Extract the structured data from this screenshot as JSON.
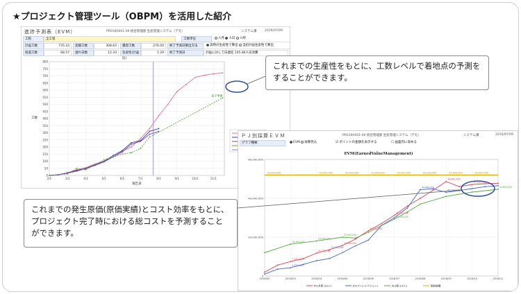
{
  "slide": {
    "title": "★プロジェクト管理ツール（OBPM）を活用した紹介"
  },
  "shot1": {
    "screen_title": "進捗予測表（EVM）",
    "menu": "PR016A001-00 統合管理部 生産管理システム（デモ）",
    "user": "システム課",
    "date": "2016/07/09",
    "row1": {
      "l1": "工程",
      "v1": "全工程",
      "l2": "工数単位",
      "radios": [
        "人月",
        "人日",
        "人時"
      ],
      "selected": 1
    },
    "row2": {
      "l1": "計画工数",
      "v1": "735.33",
      "l2": "実績工数",
      "v2": "308.63",
      "l3": "獲得工数",
      "v3": "276.00",
      "l4": "終了予測日算出方法",
      "radios": [
        "実際の生産性で算出",
        "当初計画生産性で算出"
      ],
      "selected": 0
    },
    "row3": {
      "l1": "経過工数",
      "v1": "68.57",
      "l2": "遅れ日数",
      "v2": "12.33",
      "l3": "生産性(計画比)",
      "v3": "1.29",
      "l4": "終了予測日",
      "v4": "計画に対して日遅延 105.86人日消費"
    },
    "legend": [
      "計画工数(PV)",
      "獲得工数(EV)",
      "実績工数(AC)",
      "予測値",
      "現在日"
    ],
    "ylabel": "工数",
    "xlabel": "報告日",
    "annotation": "完了予測"
  },
  "shot2": {
    "screen_title": "ＰＪ別採算ＥＶＭ",
    "menu": "PR016A001-00 統合管理部 生産管理システム（デモ）",
    "user": "システム課",
    "date": "2016/07/09",
    "opt": {
      "label": "グラフ種類",
      "radios": [
        "EVM",
        "採算見込"
      ],
      "check1": "ポイントの金額を表示する",
      "check2": "画面内に収める"
    },
    "legend": [
      "PV(予算コスト)",
      "EV(アーンドバリュー)",
      "AC(実コスト)",
      "契約金額"
    ]
  },
  "callouts": {
    "c1": "これまでの生産性をもとに、工数レベルで着地点の予測をすることができます。",
    "c2": "これまでの発生原価(原価実績)とコスト効率をもとに、プロジェクト完了時における総コストを予測することができます。"
  },
  "chart_data": [
    {
      "type": "line",
      "ylim": [
        0,
        800
      ],
      "yticks": [
        0,
        50,
        100,
        150,
        200,
        250,
        300,
        350,
        400,
        450,
        500,
        550,
        600,
        650,
        700,
        750,
        800
      ],
      "x": [
        "2/1",
        "3/1",
        "4/1",
        "5/1",
        "6/1",
        "7/1",
        "8/1",
        "9/1",
        "10/1",
        "11/1"
      ],
      "xlabel": "報告日",
      "ylabel": "工数",
      "series": [
        {
          "name": "計画工数(PV)",
          "color": "#e07090",
          "points": [
            [
              0,
              0
            ],
            [
              0.5,
              5
            ],
            [
              1,
              20
            ],
            [
              1.5,
              40
            ],
            [
              2,
              55
            ],
            [
              2.5,
              80
            ],
            [
              3,
              100
            ],
            [
              3.5,
              130
            ],
            [
              4,
              170
            ],
            [
              4.5,
              200
            ],
            [
              5,
              260
            ],
            [
              5.5,
              330
            ],
            [
              6,
              420
            ],
            [
              6.5,
              500
            ],
            [
              7,
              590
            ],
            [
              7.5,
              640
            ],
            [
              8,
              690
            ],
            [
              8.5,
              705
            ],
            [
              9,
              715
            ],
            [
              9.5,
              722
            ]
          ]
        },
        {
          "name": "獲得工数(EV)",
          "color": "#3344aa",
          "points": [
            [
              0,
              0
            ],
            [
              0.5,
              4
            ],
            [
              1,
              18
            ],
            [
              1.5,
              35
            ],
            [
              2,
              50
            ],
            [
              2.5,
              75
            ],
            [
              3,
              100
            ],
            [
              3.5,
              140
            ],
            [
              4,
              175
            ],
            [
              4.5,
              230
            ],
            [
              5,
              245
            ],
            [
              5.5,
              310
            ],
            [
              6,
              330
            ]
          ]
        },
        {
          "name": "実績工数(AC)",
          "color": "#7744aa",
          "points": [
            [
              0,
              0
            ],
            [
              0.5,
              5
            ],
            [
              1,
              16
            ],
            [
              1.5,
              30
            ],
            [
              2,
              48
            ],
            [
              2.5,
              70
            ],
            [
              3,
              95
            ],
            [
              3.5,
              130
            ],
            [
              4,
              165
            ],
            [
              4.5,
              220
            ],
            [
              5,
              240
            ],
            [
              5.5,
              290
            ],
            [
              6,
              310
            ]
          ]
        },
        {
          "name": "予測値",
          "color": "#55aa33",
          "points": [
            [
              0,
              0
            ],
            [
              1,
              10
            ],
            [
              1.5,
              50
            ],
            [
              2,
              40
            ],
            [
              3,
              110
            ],
            [
              4,
              150
            ],
            [
              4.5,
              160
            ],
            [
              5,
              190
            ],
            [
              5.5,
              270
            ],
            [
              9.5,
              545
            ]
          ]
        }
      ],
      "current_day_x": 5.7
    },
    {
      "type": "line",
      "title": "EVM(EarnedValueManagement)",
      "ylim": [
        0,
        60000000
      ],
      "yticks": [
        "0",
        "20,000,000",
        "40,000,000",
        "60,000,000"
      ],
      "x": [
        "2018/02",
        "2018/03",
        "2018/04",
        "2018/05",
        "2018/06",
        "2018/07",
        "2018/08",
        "2018/09",
        "2018/10",
        "2018/11"
      ],
      "series": [
        {
          "name": "PV(予算コスト)",
          "color": "#dd4455",
          "points": [
            [
              0,
              2000000
            ],
            [
              0.5,
              5600000
            ],
            [
              1,
              7441146
            ],
            [
              1.5,
              9000000
            ],
            [
              2,
              11775769
            ],
            [
              2.5,
              13530000
            ],
            [
              3,
              15764000
            ],
            [
              3.5,
              19000000
            ],
            [
              4,
              23275000
            ],
            [
              4.5,
              27000000
            ],
            [
              5,
              31252196
            ],
            [
              5.5,
              36000000
            ],
            [
              6,
              40000000
            ],
            [
              6.5,
              44200000
            ],
            [
              7,
              48669426
            ],
            [
              7.5,
              46000000
            ],
            [
              8,
              47143260
            ],
            [
              8.5,
              47500000
            ],
            [
              9,
              47750000
            ]
          ]
        },
        {
          "name": "EV(アーンドバリュー)",
          "color": "#4466cc",
          "points": [
            [
              0,
              1000000
            ],
            [
              0.5,
              3500000
            ],
            [
              1,
              4250000
            ],
            [
              1.5,
              6000000
            ],
            [
              2,
              7850000
            ],
            [
              2.5,
              9000000
            ],
            [
              3,
              12000000
            ],
            [
              3.5,
              15500000
            ],
            [
              4,
              18500000
            ],
            [
              4.5,
              26000000
            ],
            [
              5,
              30000000
            ],
            [
              5.5,
              35000000
            ],
            [
              6,
              44480000
            ],
            [
              6.5,
              44900000
            ],
            [
              7,
              43100000
            ],
            [
              7.5,
              44000000
            ],
            [
              8,
              45000000
            ],
            [
              8.5,
              46000000
            ],
            [
              9,
              46500000
            ]
          ]
        },
        {
          "name": "AC(実コスト)",
          "color": "#55aa44",
          "points": [
            [
              0,
              12000000
            ],
            [
              1,
              16400000
            ],
            [
              2,
              18000000
            ],
            [
              3,
              20000000
            ],
            [
              3.5,
              19500000
            ],
            [
              4,
              22500000
            ],
            [
              5,
              29300000
            ],
            [
              5.5,
              33000000
            ],
            [
              6,
              37000000
            ],
            [
              7,
              41000000
            ],
            [
              8,
              43200000
            ],
            [
              9,
              44650000
            ]
          ]
        },
        {
          "name": "契約金額",
          "color": "#ddaa00",
          "points": [
            [
              0,
              52000000
            ],
            [
              1,
              52000000
            ],
            [
              2,
              52000000
            ],
            [
              3,
              52000000
            ],
            [
              4,
              52000000
            ],
            [
              5,
              52000000
            ],
            [
              6,
              52000000
            ],
            [
              7,
              52000000
            ],
            [
              8,
              52000000
            ],
            [
              9,
              52000000
            ]
          ]
        }
      ],
      "contract_labels": [
        "52,000,000"
      ],
      "point_labels": [
        "16,400,000",
        "18,000,000",
        "20,000,000",
        "7,441,146",
        "11,775,769",
        "15,764,000",
        "23,275,000",
        "31,252,196",
        "48,669,426",
        "47,143,260",
        "44,480,000",
        "43,100,000",
        "44,650,000",
        "29,300,000",
        "13,530,000",
        "4,250,000"
      ]
    }
  ]
}
